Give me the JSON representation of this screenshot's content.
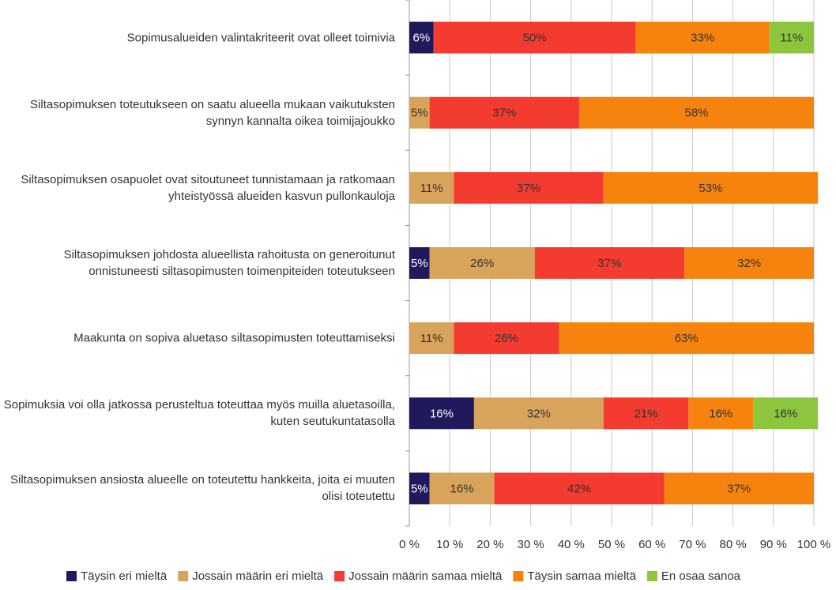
{
  "chart_data": {
    "type": "stacked-bar-horizontal",
    "categories": [
      "Sopimusalueiden valintakriteerit ovat olleet toimivia",
      "Siltasopimuksen toteutukseen on saatu alueella mukaan vaikutuksten synnyn kannalta oikea toimijajoukko",
      "Siltasopimuksen osapuolet ovat sitoutuneet tunnistamaan ja ratkomaan yhteistyössä alueiden kasvun pullonkauloja",
      "Siltasopimuksen johdosta alueellista rahoitusta on generoitunut onnistuneesti siltasopimusten toimenpiteiden toteutukseen",
      "Maakunta on sopiva aluetaso siltasopimusten toteuttamiseksi",
      "Sopimuksia voi olla jatkossa perusteltua toteuttaa myös muilla aluetasoilla, kuten seutukuntatasolla",
      "Siltasopimuksen ansiosta alueelle on toteutettu hankkeita, joita ei muuten olisi toteutettu"
    ],
    "series": [
      {
        "name": "Täysin eri mieltä",
        "color": "#1e1a5c",
        "values": [
          6,
          null,
          null,
          5,
          null,
          16,
          5
        ],
        "value_labels": [
          "6%",
          null,
          null,
          "5%",
          null,
          "16%",
          "5%"
        ]
      },
      {
        "name": "Jossain määrin eri mieltä",
        "color": "#d8a35b",
        "values": [
          null,
          5,
          11,
          26,
          11,
          32,
          16
        ],
        "value_labels": [
          null,
          "5%",
          "11%",
          "26%",
          "11%",
          "32%",
          "16%"
        ]
      },
      {
        "name": "Jossain määrin samaa mieltä",
        "color": "#f43b2f",
        "values": [
          50,
          37,
          37,
          37,
          26,
          21,
          42
        ],
        "value_labels": [
          "50%",
          "37%",
          "37%",
          "37%",
          "26%",
          "21%",
          "42%"
        ]
      },
      {
        "name": "Täysin samaa mieltä",
        "color": "#f7830f",
        "values": [
          33,
          58,
          53,
          32,
          63,
          16,
          37
        ],
        "value_labels": [
          "33%",
          "58%",
          "53%",
          "32%",
          "63%",
          "16%",
          "37%"
        ]
      },
      {
        "name": "En osaa sanoa",
        "color": "#8cc63f",
        "values": [
          11,
          null,
          null,
          null,
          null,
          16,
          null
        ],
        "value_labels": [
          "11%",
          null,
          null,
          null,
          null,
          "16%",
          null
        ]
      }
    ],
    "xlim": [
      0,
      100
    ],
    "xticks": [
      {
        "value": 0,
        "label": "0 %"
      },
      {
        "value": 10,
        "label": "10 %"
      },
      {
        "value": 20,
        "label": "20 %"
      },
      {
        "value": 30,
        "label": "30 %"
      },
      {
        "value": 40,
        "label": "40 %"
      },
      {
        "value": 50,
        "label": "50 %"
      },
      {
        "value": 60,
        "label": "60 %"
      },
      {
        "value": 70,
        "label": "70 %"
      },
      {
        "value": 80,
        "label": "80 %"
      },
      {
        "value": 90,
        "label": "90 %"
      },
      {
        "value": 100,
        "label": "100 %"
      }
    ],
    "grid": true,
    "legend": "bottom"
  }
}
